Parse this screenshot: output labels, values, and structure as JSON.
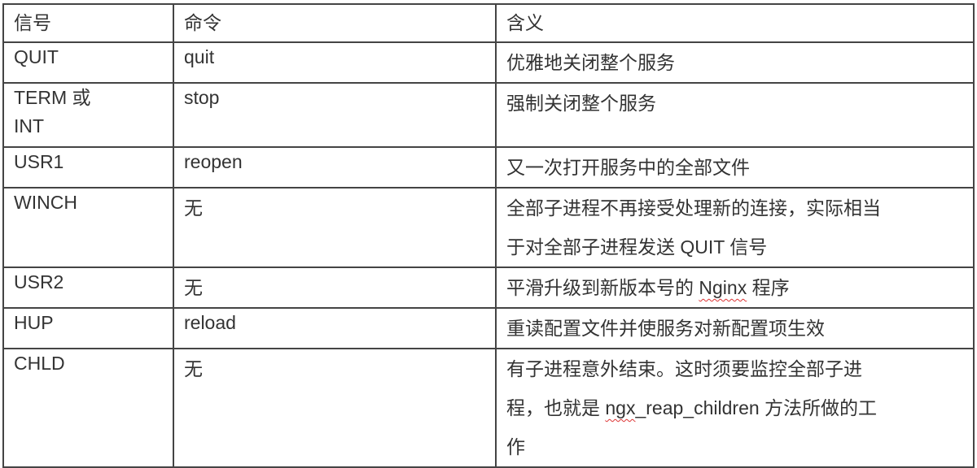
{
  "headers": [
    "信号",
    "命令",
    "含义"
  ],
  "rows": [
    {
      "signal": "QUIT",
      "command": "quit",
      "meaning": "优雅地关闭整个服务"
    },
    {
      "signal": "TERM 或 INT",
      "command": "stop",
      "meaning": "强制关闭整个服务"
    },
    {
      "signal": "USR1",
      "command": "reopen",
      "meaning": "又一次打开服务中的全部文件"
    },
    {
      "signal": "WINCH",
      "command": "无",
      "meaning": "全部子进程不再接受处理新的连接，实际相当于对全部子进程发送 QUIT 信号"
    },
    {
      "signal": "USR2",
      "command": "无",
      "meaning_parts": [
        "平滑升级到新版本号的 ",
        "Nginx",
        " 程序"
      ]
    },
    {
      "signal": "HUP",
      "command": "reload",
      "meaning": "重读配置文件并使服务对新配置项生效"
    },
    {
      "signal": "CHLD",
      "command": "无",
      "meaning_parts": [
        "有子进程意外结束。这时须要监控全部子进程，也就是 ",
        "ngx",
        "_reap_children 方法所做的工作"
      ]
    }
  ],
  "colors": {
    "border": "#444444",
    "text": "#333333",
    "spellcheck_underline": "#dd3333"
  }
}
